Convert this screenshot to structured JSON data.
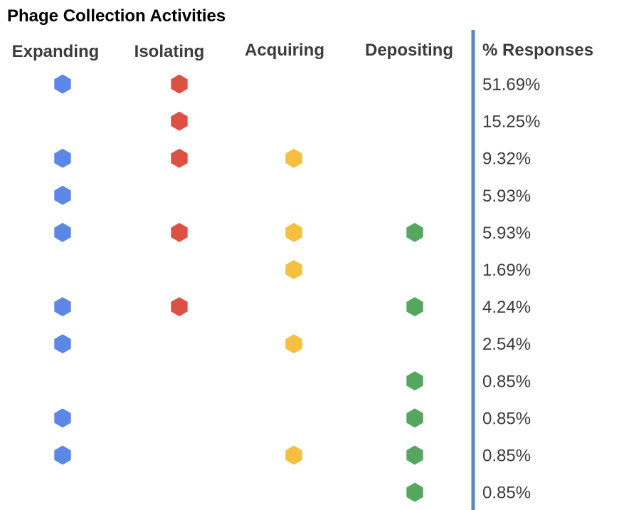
{
  "chart_data": {
    "type": "table",
    "title": "Phage Collection Activities",
    "columns": [
      "Expanding",
      "Isolating",
      "Acquiring",
      "Depositing"
    ],
    "value_header": "% Responses",
    "colors": {
      "Expanding": "#5b87e6",
      "Isolating": "#dd5144",
      "Acquiring": "#f5bf42",
      "Depositing": "#55a65e",
      "divider": "#5b87c0"
    },
    "rows": [
      {
        "activities": [
          true,
          true,
          false,
          false
        ],
        "value": "51.69%"
      },
      {
        "activities": [
          false,
          true,
          false,
          false
        ],
        "value": "15.25%"
      },
      {
        "activities": [
          true,
          true,
          true,
          false
        ],
        "value": "9.32%"
      },
      {
        "activities": [
          true,
          false,
          false,
          false
        ],
        "value": "5.93%"
      },
      {
        "activities": [
          true,
          true,
          true,
          true
        ],
        "value": "5.93%"
      },
      {
        "activities": [
          false,
          false,
          true,
          false
        ],
        "value": "1.69%"
      },
      {
        "activities": [
          true,
          true,
          false,
          true
        ],
        "value": "4.24%"
      },
      {
        "activities": [
          true,
          false,
          true,
          false
        ],
        "value": "2.54%"
      },
      {
        "activities": [
          false,
          false,
          false,
          true
        ],
        "value": "0.85%"
      },
      {
        "activities": [
          true,
          false,
          false,
          true
        ],
        "value": "0.85%"
      },
      {
        "activities": [
          true,
          false,
          true,
          true
        ],
        "value": "0.85%"
      },
      {
        "activities": [
          false,
          false,
          false,
          true
        ],
        "value": "0.85%"
      }
    ]
  }
}
